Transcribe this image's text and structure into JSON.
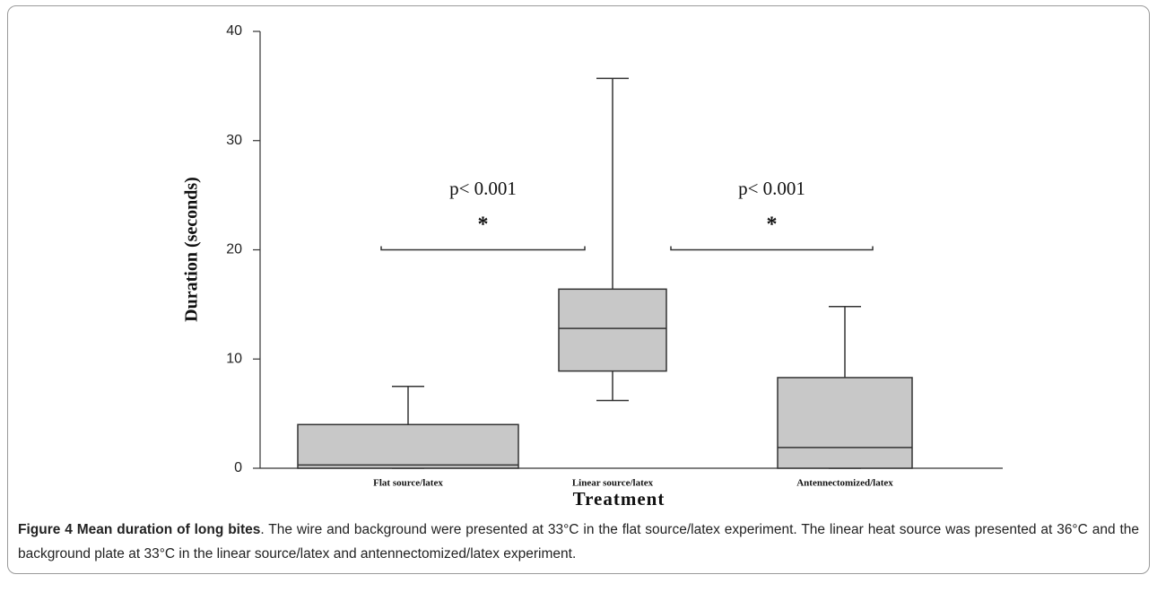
{
  "chart_data": {
    "type": "box",
    "ylabel": "Duration (seconds)",
    "xlabel": "Treatment",
    "categories": [
      "Flat source/latex",
      "Linear source/latex",
      "Antennectomized/latex"
    ],
    "min": [
      0,
      6.2,
      0
    ],
    "q1": [
      0,
      8.9,
      0
    ],
    "median": [
      0.3,
      12.8,
      1.9
    ],
    "q3": [
      4.0,
      16.4,
      8.3
    ],
    "max": [
      7.5,
      35.7,
      14.8
    ],
    "color": "#c8c8c8",
    "ylim": [
      0,
      40
    ],
    "yticks": [
      0,
      10,
      20,
      30,
      40
    ],
    "annotations": [
      {
        "text": "p< 0.001",
        "mark": "*",
        "y": 20
      },
      {
        "text": "p< 0.001",
        "mark": "*",
        "y": 20
      }
    ]
  },
  "caption": {
    "label": "Figure 4 Mean duration of long bites",
    "text": ". The wire and background were presented at 33°C in the flat source/latex experiment. The linear heat source was presented at 36°C and the background plate at 33°C in the linear source/latex and antennectomized/latex experiment."
  }
}
